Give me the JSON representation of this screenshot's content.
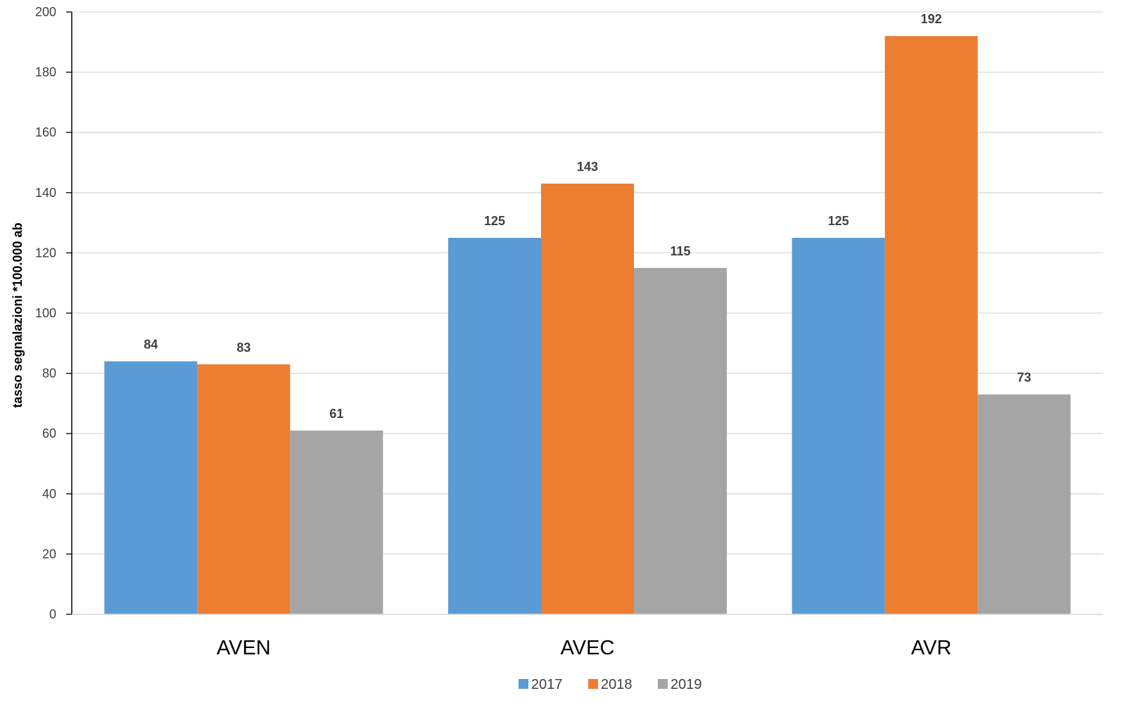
{
  "chart_data": {
    "type": "bar",
    "categories": [
      "AVEN",
      "AVEC",
      "AVR"
    ],
    "series": [
      {
        "name": "2017",
        "color": "#5B9BD5",
        "values": [
          84,
          125,
          125
        ]
      },
      {
        "name": "2018",
        "color": "#ED7D31",
        "values": [
          83,
          143,
          192
        ]
      },
      {
        "name": "2019",
        "color": "#A5A5A5",
        "values": [
          61,
          115,
          73
        ]
      }
    ],
    "data_labels": [
      [
        "84",
        "125",
        "125"
      ],
      [
        "83",
        "143",
        "192"
      ],
      [
        "61",
        "115",
        "73"
      ]
    ],
    "ylabel": "tasso segnalazioni *100.000 ab",
    "xlabel": "",
    "ylim": [
      0,
      200
    ],
    "yticks": [
      "0",
      "20",
      "40",
      "60",
      "80",
      "100",
      "120",
      "140",
      "160",
      "180",
      "200"
    ],
    "grid": true,
    "legend": "bottom"
  }
}
